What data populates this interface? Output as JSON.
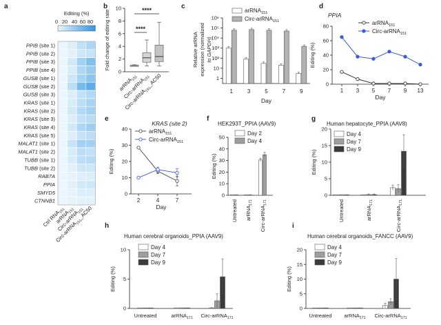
{
  "chart_data": [
    {
      "panel": "a",
      "type": "heatmap",
      "colorbar_title": "Editing (%)",
      "colorbar_ticks": [
        "0",
        "20",
        "40",
        "60",
        "80"
      ],
      "rows": [
        "PPIB (site 1)",
        "PPIB (site 2)",
        "PPIB (site 3)",
        "PPIB (site 4)",
        "GUSB (site 1)",
        "GUSB (site 2)",
        "GUSB (site 3)",
        "KRAS (site 1)",
        "KRAS (site 2)",
        "KRAS (site 3)",
        "KRAS (site 4)",
        "KRAS (site 5)",
        "MALAT1 (site 1)",
        "MALAT1 (site 2)",
        "TUBB (site 1)",
        "TUBB (site 2)",
        "RAB7A",
        "PPIA",
        "SMYD5",
        "CTNNB1"
      ],
      "columns": [
        "Ctrl RNA151",
        "arRNA151",
        "Circ-arRNA151",
        "Circ-arRNA151_AC50"
      ],
      "column_labels": [
        {
          "main": "Ctrl RNA",
          "sub": "151",
          "tail": ""
        },
        {
          "main": "arRNA",
          "sub": "151",
          "tail": ""
        },
        {
          "main": "Circ-arRNA",
          "sub": "151",
          "tail": ""
        },
        {
          "main": "Circ-arRNA",
          "sub": "151",
          "tail": "_AC50"
        }
      ],
      "values": [
        [
          0,
          5,
          18,
          25
        ],
        [
          0,
          3,
          12,
          15
        ],
        [
          0,
          10,
          30,
          45
        ],
        [
          0,
          8,
          25,
          35
        ],
        [
          0,
          12,
          28,
          40
        ],
        [
          0,
          20,
          50,
          60
        ],
        [
          0,
          6,
          18,
          24
        ],
        [
          0,
          8,
          20,
          28
        ],
        [
          0,
          10,
          24,
          30
        ],
        [
          0,
          6,
          18,
          22
        ],
        [
          0,
          10,
          25,
          32
        ],
        [
          0,
          6,
          16,
          20
        ],
        [
          0,
          15,
          30,
          30
        ],
        [
          0,
          8,
          20,
          18
        ],
        [
          0,
          8,
          20,
          22
        ],
        [
          0,
          4,
          12,
          12
        ],
        [
          0,
          2,
          5,
          6
        ],
        [
          0,
          4,
          10,
          12
        ],
        [
          0,
          2,
          6,
          6
        ],
        [
          0,
          2,
          3,
          3
        ]
      ]
    },
    {
      "panel": "b",
      "type": "box",
      "ylabel": "Fold change of editing rate",
      "ylim": [
        0,
        10
      ],
      "yticks": [
        "0",
        "2",
        "4",
        "6",
        "8",
        "10"
      ],
      "categories": [
        {
          "main": "arRNA",
          "sub": "151",
          "tail": ""
        },
        {
          "main": "Circ-arRNA",
          "sub": "151",
          "tail": ""
        },
        {
          "main": "Circ-arRNA",
          "sub": "151",
          "tail": "_AC50"
        }
      ],
      "boxes": [
        {
          "min": 0.9,
          "q1": 1.0,
          "median": 1.0,
          "q3": 1.0,
          "max": 1.1
        },
        {
          "min": 0.9,
          "q1": 1.5,
          "median": 2.2,
          "q3": 3.0,
          "max": 5.0
        },
        {
          "min": 0.9,
          "q1": 1.6,
          "median": 2.4,
          "q3": 4.2,
          "max": 7.8
        }
      ],
      "significance": [
        "****",
        "****"
      ]
    },
    {
      "panel": "c",
      "type": "bar",
      "ylabel_line1": "Relative arRNA",
      "ylabel_line2": "expression (normalized",
      "ylabel_line3": "to GAPDH)",
      "xlabel": "Day",
      "yscale": "log",
      "ylim": [
        0.3,
        1000000
      ],
      "yticks": [
        "1",
        "10",
        "10²",
        "10³",
        "10⁴",
        "10⁵",
        "10⁶"
      ],
      "categories": [
        "1",
        "3",
        "5",
        "7",
        "9"
      ],
      "series": [
        {
          "name_main": "arRNA",
          "name_sub": "151",
          "color": "#ffffff",
          "values": [
            1000,
            80,
            30,
            20,
            3
          ]
        },
        {
          "name_main": "Circ-arRNA",
          "name_sub": "151",
          "color": "#b3b3b3",
          "values": [
            60000,
            70000,
            60000,
            50000,
            1500
          ]
        }
      ]
    },
    {
      "panel": "d",
      "type": "line",
      "title": "PPIA",
      "ylabel": "Editing (%)",
      "xlabel": "Day",
      "ylim": [
        0,
        80
      ],
      "yticks": [
        "0",
        "20",
        "40",
        "60",
        "80"
      ],
      "categories": [
        "1",
        "3",
        "5",
        "7",
        "9",
        "13"
      ],
      "series": [
        {
          "name_main": "arRNA",
          "name_sub": "151",
          "color": "#333333",
          "marker": "circle-open",
          "values": [
            17,
            7,
            1,
            1,
            1,
            0
          ]
        },
        {
          "name_main": "Circ-arRNA",
          "name_sub": "151",
          "color": "#3b5bdb",
          "marker": "circle-filled",
          "values": [
            65,
            38,
            35,
            45,
            38,
            27
          ]
        }
      ]
    },
    {
      "panel": "e",
      "type": "line",
      "title": "KRAS (site 2)",
      "ylabel": "Editing (%)",
      "xlabel": "Day",
      "ylim": [
        0,
        40
      ],
      "yticks": [
        "0",
        "10",
        "20",
        "30",
        "40"
      ],
      "categories": [
        "2",
        "4",
        "7"
      ],
      "series": [
        {
          "name_main": "arRNA",
          "name_sub": "151",
          "color": "#555555",
          "marker": "circle-open",
          "values": [
            28.5,
            14,
            8
          ],
          "errors": [
            0,
            1.5,
            3
          ]
        },
        {
          "name_main": "Circ-arRNA",
          "name_sub": "151",
          "color": "#4263eb",
          "marker": "circle-open",
          "values": [
            10,
            15,
            13
          ],
          "errors": [
            0,
            1.5,
            2.5
          ]
        }
      ]
    },
    {
      "panel": "f",
      "type": "bar",
      "title": "HEK293T_PPIA (AAV9)",
      "ylabel": "Editing (%)",
      "ylim": [
        0,
        50
      ],
      "yticks": [
        "0",
        "10",
        "20",
        "30",
        "40",
        "50"
      ],
      "categories": [
        {
          "main": "Untreated",
          "sub": "",
          "tail": ""
        },
        {
          "main": "arRNA",
          "sub": "171",
          "tail": ""
        },
        {
          "main": "Circ-arRNA",
          "sub": "171",
          "tail": ""
        }
      ],
      "series": [
        {
          "name": "Day 2",
          "color": "#ffffff",
          "values": [
            0,
            0.1,
            30.5
          ],
          "errors": [
            0,
            0,
            1.5
          ]
        },
        {
          "name": "Day 4",
          "color": "#9e9e9e",
          "values": [
            0,
            0.1,
            35
          ],
          "errors": [
            0,
            0,
            2
          ]
        }
      ]
    },
    {
      "panel": "g",
      "type": "bar",
      "title": "Human hepatocyte_PPIA (AAV8)",
      "ylabel": "Editing (%)",
      "ylim": [
        0,
        20
      ],
      "yticks": [
        "0",
        "5",
        "10",
        "15",
        "20"
      ],
      "categories": [
        {
          "main": "Untreated",
          "sub": "",
          "tail": ""
        },
        {
          "main": "arRNA",
          "sub": "171",
          "tail": ""
        },
        {
          "main": "Circ-arRNA",
          "sub": "171",
          "tail": ""
        }
      ],
      "series": [
        {
          "name": "Day 4",
          "color": "#ffffff",
          "values": [
            0,
            0.1,
            2.3
          ],
          "errors": [
            0,
            0,
            0.8
          ]
        },
        {
          "name": "Day 7",
          "color": "#9e9e9e",
          "values": [
            0,
            0.2,
            2
          ],
          "errors": [
            0,
            0.2,
            1.2
          ]
        },
        {
          "name": "Day 9",
          "color": "#3a3a3a",
          "values": [
            0,
            0.2,
            13.3
          ],
          "errors": [
            0,
            0.2,
            5
          ]
        }
      ]
    },
    {
      "panel": "h",
      "type": "bar",
      "title": "Human cerebral organoids_PPIA (AAV9)",
      "ylabel": "Editing (%)",
      "ylim": [
        0,
        10
      ],
      "yticks": [
        "0",
        "5",
        "10"
      ],
      "categories": [
        {
          "main": "Untreated",
          "sub": "",
          "tail": ""
        },
        {
          "main": "arRNA",
          "sub": "171",
          "tail": ""
        },
        {
          "main": "Circ-arRNA",
          "sub": "171",
          "tail": ""
        }
      ],
      "series": [
        {
          "name": "Day 4",
          "color": "#ffffff",
          "values": [
            0.05,
            0.1,
            0.1
          ],
          "errors": [
            0,
            0,
            0.05
          ]
        },
        {
          "name": "Day 7",
          "color": "#9e9e9e",
          "values": [
            0.05,
            0.1,
            1.3
          ],
          "errors": [
            0,
            0,
            1.2
          ]
        },
        {
          "name": "Day 9",
          "color": "#3a3a3a",
          "values": [
            0.05,
            0.1,
            5.4
          ],
          "errors": [
            0,
            0,
            3
          ]
        }
      ]
    },
    {
      "panel": "i",
      "type": "bar",
      "title": "Human cerebral organoids_FANCC (AAV9)",
      "ylabel": "Editing (%)",
      "ylim": [
        0,
        20
      ],
      "yticks": [
        "0",
        "5",
        "10",
        "15",
        "20"
      ],
      "categories": [
        {
          "main": "Untreated",
          "sub": "",
          "tail": ""
        },
        {
          "main": "arRNA",
          "sub": "171",
          "tail": ""
        },
        {
          "main": "Circ-arRNA",
          "sub": "171",
          "tail": ""
        }
      ],
      "series": [
        {
          "name": "Day 4",
          "color": "#ffffff",
          "values": [
            0,
            0,
            1
          ],
          "errors": [
            0,
            0,
            0.8
          ]
        },
        {
          "name": "Day 7",
          "color": "#9e9e9e",
          "values": [
            0,
            0,
            2.3
          ],
          "errors": [
            0,
            0,
            1
          ]
        },
        {
          "name": "Day 9",
          "color": "#3a3a3a",
          "values": [
            0,
            0,
            10
          ],
          "errors": [
            0,
            0,
            7
          ]
        }
      ]
    }
  ]
}
